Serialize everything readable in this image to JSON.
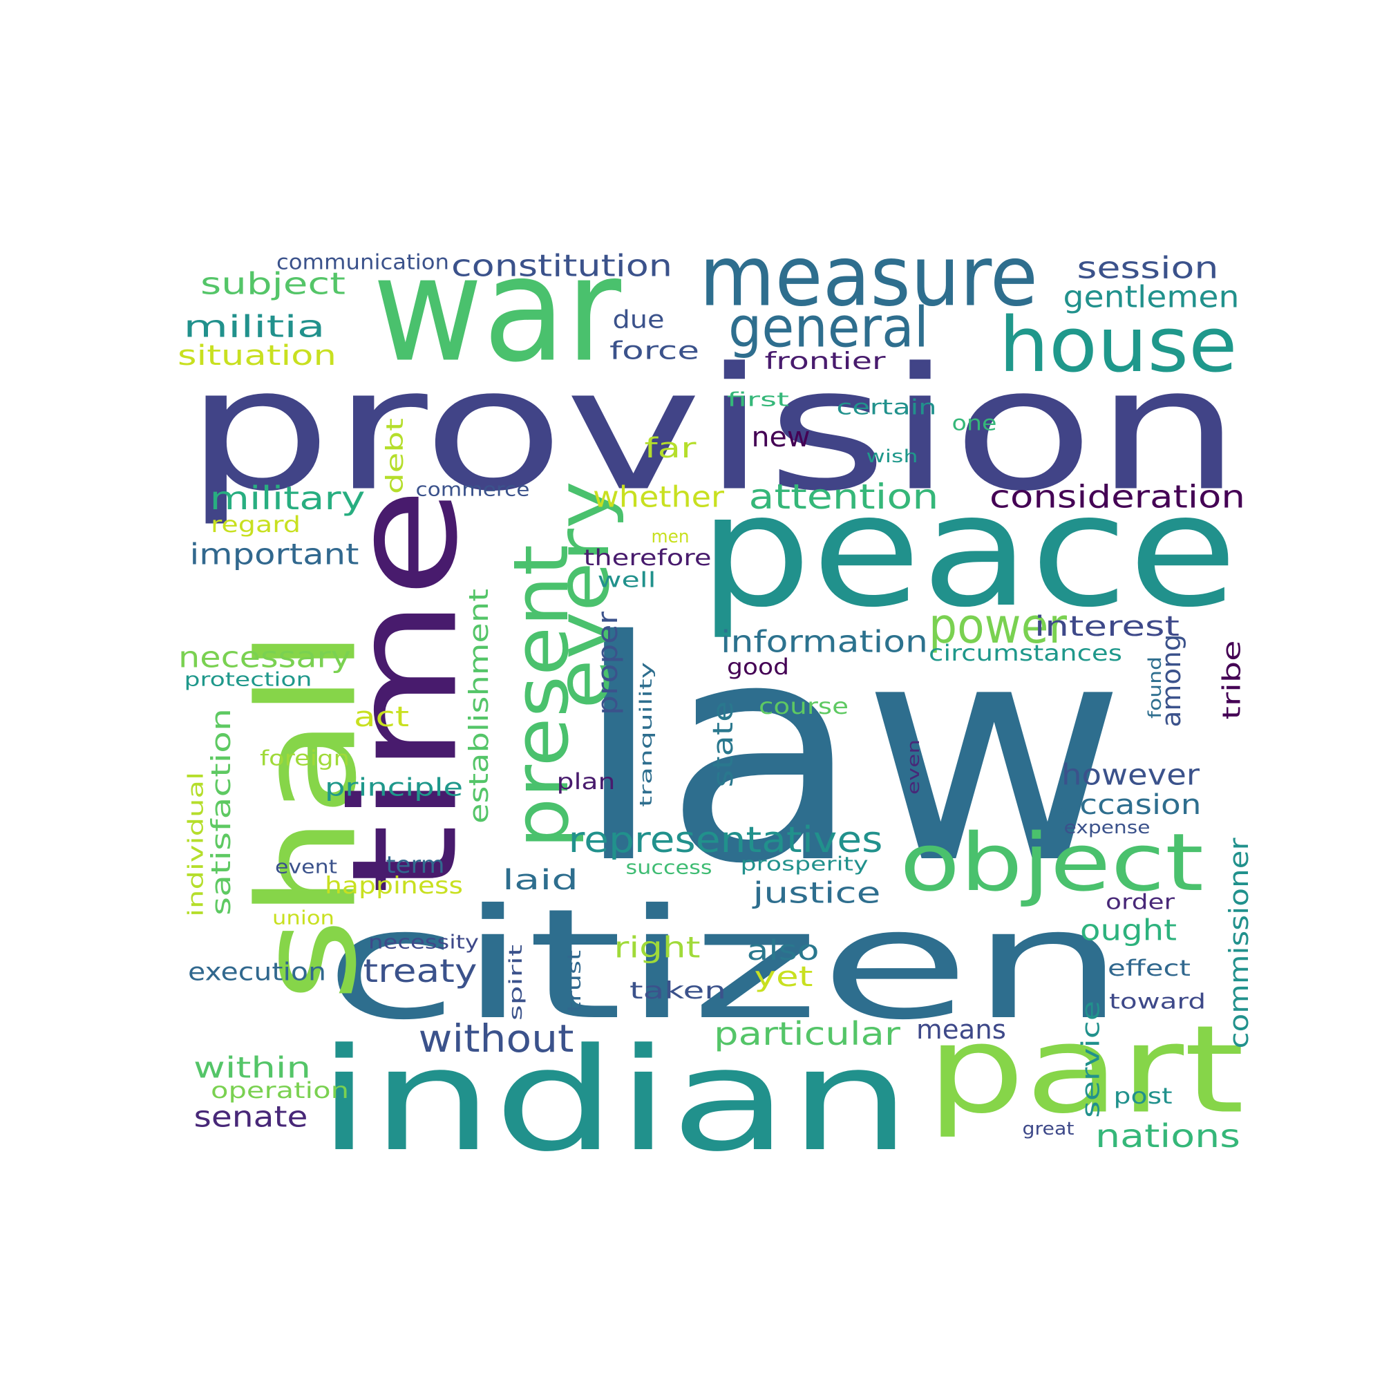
{
  "words": [
    {
      "text": "law",
      "color": "#2e6e8e"
    },
    {
      "text": "provision",
      "color": "#414487"
    },
    {
      "text": "peace",
      "color": "#21918c"
    },
    {
      "text": "citizen",
      "color": "#2e6e8e"
    },
    {
      "text": "indian",
      "color": "#21918c"
    },
    {
      "text": "war",
      "color": "#4ac16d"
    },
    {
      "text": "shall",
      "color": "#86d549"
    },
    {
      "text": "time",
      "color": "#481b6d"
    },
    {
      "text": "part",
      "color": "#86d549"
    },
    {
      "text": "measure",
      "color": "#2e6e8e"
    },
    {
      "text": "house",
      "color": "#1f988b"
    },
    {
      "text": "object",
      "color": "#4ac16d"
    },
    {
      "text": "present",
      "color": "#4ac16d"
    },
    {
      "text": "every",
      "color": "#4ac16d"
    },
    {
      "text": "general",
      "color": "#2e6e8e"
    },
    {
      "text": "power",
      "color": "#7ad151"
    },
    {
      "text": "representatives",
      "color": "#21918c"
    },
    {
      "text": "constitution",
      "color": "#3b528b"
    },
    {
      "text": "attention",
      "color": "#35b779"
    },
    {
      "text": "consideration",
      "color": "#440154"
    },
    {
      "text": "information",
      "color": "#2c728e"
    },
    {
      "text": "without",
      "color": "#3b528b"
    },
    {
      "text": "particular",
      "color": "#54c568"
    },
    {
      "text": "nations",
      "color": "#35b779"
    },
    {
      "text": "session",
      "color": "#3b528b"
    },
    {
      "text": "gentlemen",
      "color": "#21918c"
    },
    {
      "text": "subject",
      "color": "#54c568"
    },
    {
      "text": "militia",
      "color": "#21918c"
    },
    {
      "text": "situation",
      "color": "#c8e020"
    },
    {
      "text": "military",
      "color": "#28ae80"
    },
    {
      "text": "important",
      "color": "#31688e"
    },
    {
      "text": "necessary",
      "color": "#7ad151"
    },
    {
      "text": "establishment",
      "color": "#54c568"
    },
    {
      "text": "proper",
      "color": "#3b528b"
    },
    {
      "text": "state",
      "color": "#2a788e"
    },
    {
      "text": "satisfaction",
      "color": "#5ec962"
    },
    {
      "text": "treaty",
      "color": "#3b528b"
    },
    {
      "text": "within",
      "color": "#54c568"
    },
    {
      "text": "senate",
      "color": "#482878"
    },
    {
      "text": "justice",
      "color": "#2e6e8e"
    },
    {
      "text": "however",
      "color": "#3b528b"
    },
    {
      "text": "occasion",
      "color": "#2e6e8e"
    },
    {
      "text": "interest",
      "color": "#3e4989"
    },
    {
      "text": "commissioner",
      "color": "#21918c"
    },
    {
      "text": "whether",
      "color": "#c8e020"
    },
    {
      "text": "ought",
      "color": "#2db27d"
    },
    {
      "text": "execution",
      "color": "#31688e"
    },
    {
      "text": "laid",
      "color": "#2e6e8e"
    },
    {
      "text": "right",
      "color": "#a0da39"
    },
    {
      "text": "also",
      "color": "#2a788e"
    },
    {
      "text": "means",
      "color": "#3e4989"
    },
    {
      "text": "service",
      "color": "#21918c"
    },
    {
      "text": "among",
      "color": "#3b528b"
    },
    {
      "text": "tribe",
      "color": "#440154"
    },
    {
      "text": "principle",
      "color": "#1f988b"
    },
    {
      "text": "happiness",
      "color": "#c8e020"
    },
    {
      "text": "new",
      "color": "#440154"
    },
    {
      "text": "far",
      "color": "#b5de2b"
    },
    {
      "text": "force",
      "color": "#3b528b"
    },
    {
      "text": "due",
      "color": "#3b528b"
    },
    {
      "text": "frontier",
      "color": "#481b6d"
    },
    {
      "text": "debt",
      "color": "#b5de2b"
    },
    {
      "text": "act",
      "color": "#c8e020"
    },
    {
      "text": "yet",
      "color": "#c8e020"
    },
    {
      "text": "taken",
      "color": "#3b528b"
    },
    {
      "text": "term",
      "color": "#31688e"
    },
    {
      "text": "operation",
      "color": "#7ad151"
    },
    {
      "text": "post",
      "color": "#21918c"
    },
    {
      "text": "effect",
      "color": "#31688e"
    },
    {
      "text": "order",
      "color": "#482878"
    },
    {
      "text": "toward",
      "color": "#3e4989"
    },
    {
      "text": "therefore",
      "color": "#481b6d"
    },
    {
      "text": "well",
      "color": "#21918c"
    },
    {
      "text": "good",
      "color": "#440154"
    },
    {
      "text": "course",
      "color": "#5ec962"
    },
    {
      "text": "plan",
      "color": "#481b6d"
    },
    {
      "text": "foreign",
      "color": "#a0da39"
    },
    {
      "text": "circumstances",
      "color": "#1f988b"
    },
    {
      "text": "commerce",
      "color": "#3b528b"
    },
    {
      "text": "regard",
      "color": "#c8e020"
    },
    {
      "text": "certain",
      "color": "#21918c"
    },
    {
      "text": "first",
      "color": "#35b779"
    },
    {
      "text": "one",
      "color": "#35b779"
    },
    {
      "text": "wish",
      "color": "#1f988b"
    },
    {
      "text": "men",
      "color": "#c8e020"
    },
    {
      "text": "communication",
      "color": "#3b528b"
    },
    {
      "text": "protection",
      "color": "#1f988b"
    },
    {
      "text": "individual",
      "color": "#b5de2b"
    },
    {
      "text": "event",
      "color": "#3b528b"
    },
    {
      "text": "union",
      "color": "#c8e020"
    },
    {
      "text": "necessity",
      "color": "#3e4989"
    },
    {
      "text": "spirit",
      "color": "#3b528b"
    },
    {
      "text": "trust",
      "color": "#31688e"
    },
    {
      "text": "success",
      "color": "#3fbc73"
    },
    {
      "text": "prosperity",
      "color": "#21918c"
    },
    {
      "text": "expense",
      "color": "#3b528b"
    },
    {
      "text": "great",
      "color": "#3e4989"
    },
    {
      "text": "found",
      "color": "#2e6e8e"
    },
    {
      "text": "tranquility",
      "color": "#2e6e8e"
    },
    {
      "text": "even",
      "color": "#482878"
    }
  ]
}
